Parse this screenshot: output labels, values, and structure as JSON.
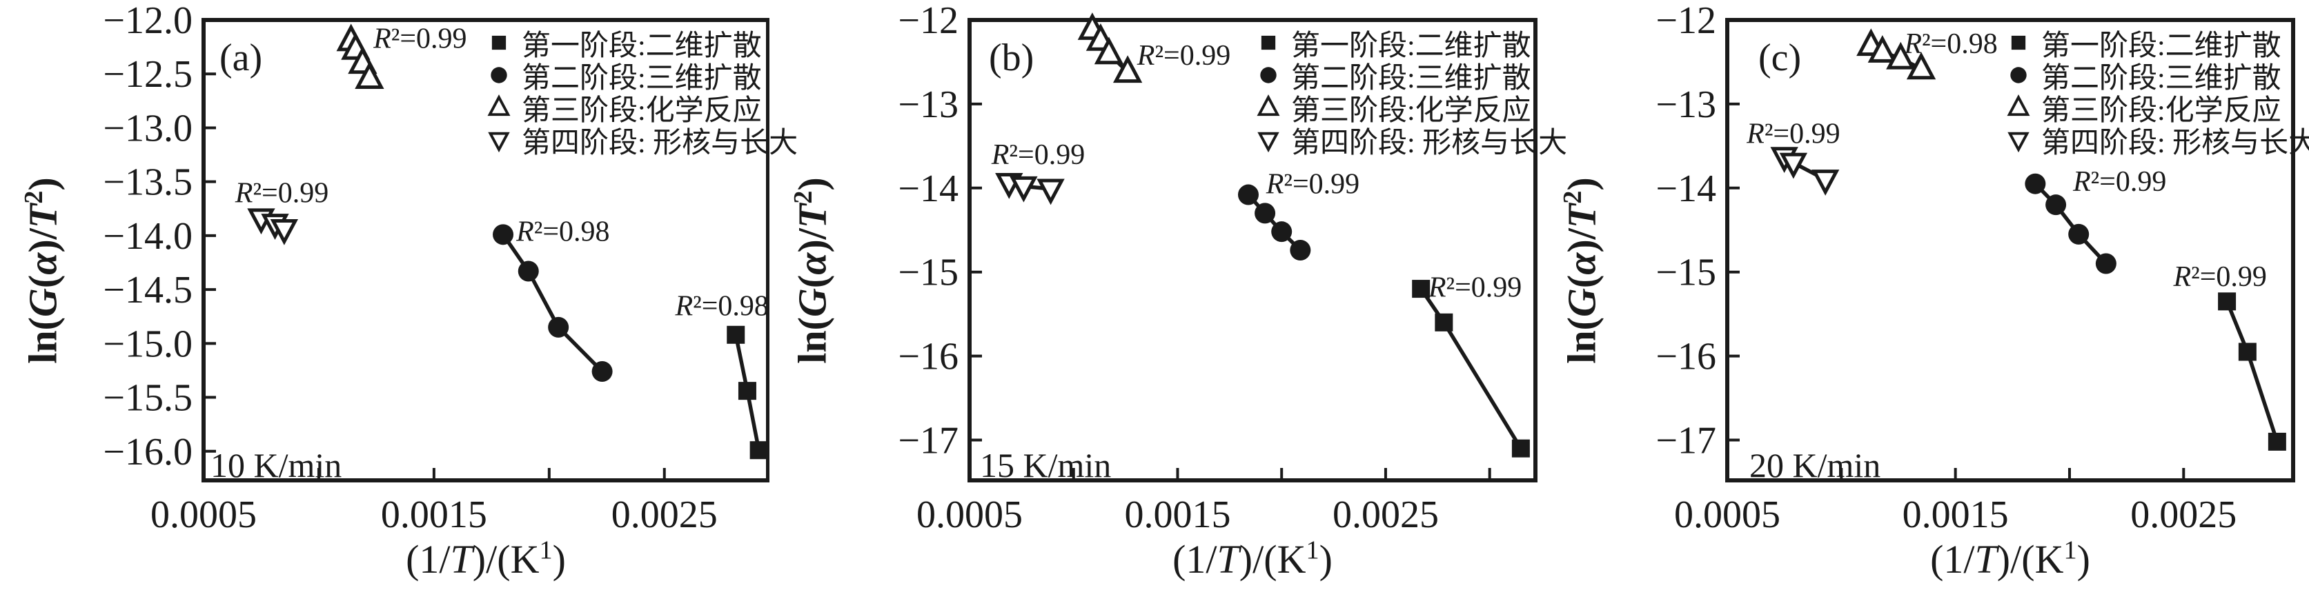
{
  "colors": {
    "ink": "#1a1a1a",
    "background": "#ffffff"
  },
  "legend": {
    "items": [
      {
        "marker": "square-filled",
        "label": "第一阶段:二维扩散"
      },
      {
        "marker": "circle-filled",
        "label": "第二阶段:三维扩散"
      },
      {
        "marker": "triangle-up-open",
        "label": "第三阶段:化学反应"
      },
      {
        "marker": "triangle-down-open",
        "label": "第四阶段: 形核与长大"
      }
    ]
  },
  "chart_data": [
    {
      "type": "scatter",
      "panel_label": "(a)",
      "rate_label": "10 K/min",
      "xlabel": "(1/T)/(K¹)",
      "ylabel": "ln(G(α)/T²)",
      "xlim": [
        0.0005,
        0.00295
      ],
      "ylim": [
        -16.27,
        -12.0
      ],
      "x_ticks": [
        0.001,
        0.0015,
        0.002,
        0.0025
      ],
      "x_tick_labels": [
        {
          "value": 0.0005,
          "label": "0.0005"
        },
        {
          "value": 0.0015,
          "label": "0.0015"
        },
        {
          "value": 0.0025,
          "label": "0.0025"
        }
      ],
      "y_ticks": [
        {
          "value": -12.0,
          "label": "−12.0"
        },
        {
          "value": -12.5,
          "label": "−12.5"
        },
        {
          "value": -13.0,
          "label": "−13.0"
        },
        {
          "value": -13.5,
          "label": "−13.5"
        },
        {
          "value": -14.0,
          "label": "−14.0"
        },
        {
          "value": -14.5,
          "label": "−14.5"
        },
        {
          "value": -15.0,
          "label": "−15.0"
        },
        {
          "value": -15.5,
          "label": "−15.5"
        },
        {
          "value": -16.0,
          "label": "−16.0"
        }
      ],
      "series": [
        {
          "name": "第一阶段:二维扩散",
          "marker": "square-filled",
          "points": [
            [
              0.00281,
              -14.92
            ],
            [
              0.00286,
              -15.44
            ],
            [
              0.00291,
              -15.99
            ]
          ],
          "r2": "R²=0.98",
          "r2_pos": [
            0.00275,
            -14.65
          ]
        },
        {
          "name": "第二阶段:三维扩散",
          "marker": "circle-filled",
          "points": [
            [
              0.0018,
              -13.99
            ],
            [
              0.00191,
              -14.33
            ],
            [
              0.00204,
              -14.85
            ],
            [
              0.00223,
              -15.26
            ]
          ],
          "r2": "R²=0.98",
          "r2_pos": [
            0.00206,
            -13.96
          ]
        },
        {
          "name": "第三阶段:化学反应",
          "marker": "triangle-up-open",
          "points": [
            [
              0.00114,
              -12.19
            ],
            [
              0.00116,
              -12.27
            ],
            [
              0.00119,
              -12.4
            ],
            [
              0.00122,
              -12.54
            ]
          ],
          "r2": "R²=0.99",
          "r2_pos": [
            0.00144,
            -12.17
          ]
        },
        {
          "name": "第四阶段: 形核与长大",
          "marker": "triangle-down-open",
          "points": [
            [
              0.00075,
              -13.84
            ],
            [
              0.00081,
              -13.89
            ],
            [
              0.00085,
              -13.94
            ]
          ],
          "r2": "R²=0.99",
          "r2_pos": [
            0.00084,
            -13.6
          ]
        }
      ]
    },
    {
      "type": "scatter",
      "panel_label": "(b)",
      "rate_label": "15 K/min",
      "xlabel": "(1/T)/(K¹)",
      "ylabel": "ln(G(α)/T²)",
      "xlim": [
        0.0005,
        0.00322
      ],
      "ylim": [
        -17.48,
        -12.0
      ],
      "x_ticks": [
        0.001,
        0.0015,
        0.002,
        0.0025,
        0.003
      ],
      "x_tick_labels": [
        {
          "value": 0.0005,
          "label": "0.0005"
        },
        {
          "value": 0.0015,
          "label": "0.0015"
        },
        {
          "value": 0.0025,
          "label": "0.0025"
        }
      ],
      "y_ticks": [
        {
          "value": -12.0,
          "label": "−12"
        },
        {
          "value": -13.0,
          "label": "−13"
        },
        {
          "value": -14.0,
          "label": "−14"
        },
        {
          "value": -15.0,
          "label": "−15"
        },
        {
          "value": -16.0,
          "label": "−16"
        },
        {
          "value": -17.0,
          "label": "−17"
        }
      ],
      "series": [
        {
          "name": "第一阶段:二维扩散",
          "marker": "square-filled",
          "points": [
            [
              0.00267,
              -15.2
            ],
            [
              0.00278,
              -15.6
            ],
            [
              0.00315,
              -17.1
            ]
          ],
          "r2": "R²=0.99",
          "r2_pos": [
            0.00293,
            -15.18
          ]
        },
        {
          "name": "第二阶段:三维扩散",
          "marker": "circle-filled",
          "points": [
            [
              0.00184,
              -14.08
            ],
            [
              0.00192,
              -14.3
            ],
            [
              0.002,
              -14.52
            ],
            [
              0.00209,
              -14.74
            ]
          ],
          "r2": "R²=0.99",
          "r2_pos": [
            0.00215,
            -13.95
          ]
        },
        {
          "name": "第三阶段:化学反应",
          "marker": "triangle-up-open",
          "points": [
            [
              0.00109,
              -12.11
            ],
            [
              0.00113,
              -12.24
            ],
            [
              0.00117,
              -12.4
            ],
            [
              0.00126,
              -12.62
            ]
          ],
          "r2": "R²=0.99",
          "r2_pos": [
            0.00153,
            -12.42
          ]
        },
        {
          "name": "第四阶段: 形核与长大",
          "marker": "triangle-down-open",
          "points": [
            [
              0.00069,
              -13.94
            ],
            [
              0.00076,
              -13.98
            ],
            [
              0.00089,
              -14.01
            ]
          ],
          "r2": "R²=0.99",
          "r2_pos": [
            0.00083,
            -13.6
          ]
        }
      ]
    },
    {
      "type": "scatter",
      "panel_label": "(c)",
      "rate_label": "20 K/min",
      "xlabel": "(1/T)/(K¹)",
      "ylabel": "ln(G(α)/T²)",
      "xlim": [
        0.0005,
        0.00298
      ],
      "ylim": [
        -17.48,
        -12.0
      ],
      "x_ticks": [
        0.001,
        0.0015,
        0.002,
        0.0025
      ],
      "x_tick_labels": [
        {
          "value": 0.0005,
          "label": "0.0005"
        },
        {
          "value": 0.0015,
          "label": "0.0015"
        },
        {
          "value": 0.0025,
          "label": "0.0025"
        }
      ],
      "y_ticks": [
        {
          "value": -12.0,
          "label": "−12"
        },
        {
          "value": -13.0,
          "label": "−13"
        },
        {
          "value": -14.0,
          "label": "−14"
        },
        {
          "value": -15.0,
          "label": "−15"
        },
        {
          "value": -16.0,
          "label": "−16"
        },
        {
          "value": -17.0,
          "label": "−17"
        }
      ],
      "series": [
        {
          "name": "第一阶段:二维扩散",
          "marker": "square-filled",
          "points": [
            [
              0.00269,
              -15.35
            ],
            [
              0.00278,
              -15.95
            ],
            [
              0.00291,
              -17.02
            ]
          ],
          "r2": "R²=0.99",
          "r2_pos": [
            0.00266,
            -15.05
          ]
        },
        {
          "name": "第二阶段:三维扩散",
          "marker": "circle-filled",
          "points": [
            [
              0.00185,
              -13.95
            ],
            [
              0.00194,
              -14.2
            ],
            [
              0.00204,
              -14.55
            ],
            [
              0.00216,
              -14.9
            ]
          ],
          "r2": "R²=0.99",
          "r2_pos": [
            0.00222,
            -13.92
          ]
        },
        {
          "name": "第三阶段:化学反应",
          "marker": "triangle-up-open",
          "points": [
            [
              0.00113,
              -12.3
            ],
            [
              0.00118,
              -12.38
            ],
            [
              0.00126,
              -12.46
            ],
            [
              0.00135,
              -12.58
            ]
          ],
          "r2": "R²=0.98",
          "r2_pos": [
            0.00148,
            -12.28
          ]
        },
        {
          "name": "第四阶段: 形核与长大",
          "marker": "triangle-down-open",
          "points": [
            [
              0.00075,
              -13.63
            ],
            [
              0.00079,
              -13.7
            ],
            [
              0.00093,
              -13.9
            ]
          ],
          "r2": "R²=0.99",
          "r2_pos": [
            0.00079,
            -13.35
          ]
        }
      ]
    }
  ]
}
